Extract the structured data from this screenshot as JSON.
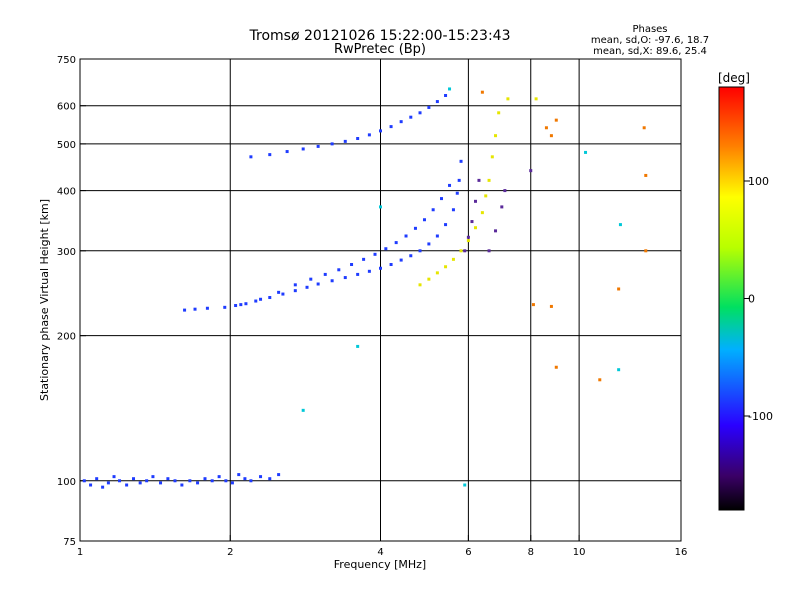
{
  "chart_data": {
    "type": "scatter",
    "title": "Tromsø 20121026 15:22:00-15:23:43",
    "subtitle": "RwPretec (Bp)",
    "stats": {
      "heading": "Phases",
      "line1": "mean, sd,O: -97.6, 18.7",
      "line2": "mean, sd,X:  89.6, 25.4"
    },
    "xlabel": "Frequency [MHz]",
    "ylabel": "Stationary phase Virtual Height [km]",
    "x_scale": "log",
    "y_scale": "log",
    "xlim": [
      1,
      16
    ],
    "ylim": [
      75,
      750
    ],
    "x_ticks": [
      1,
      2,
      4,
      6,
      8,
      10,
      16
    ],
    "y_ticks": [
      75,
      100,
      200,
      300,
      400,
      500,
      600,
      750
    ],
    "x_grid": [
      2,
      4,
      6,
      8,
      10
    ],
    "y_grid": [
      100,
      200,
      300,
      400,
      500,
      600
    ],
    "grid": true,
    "colorbar": {
      "label": "[deg]",
      "range": [
        -180,
        180
      ],
      "ticks": [
        100,
        0,
        -100
      ]
    },
    "series": [
      {
        "color": "#1f3cff",
        "points": [
          [
            1.02,
            100
          ],
          [
            1.05,
            98
          ],
          [
            1.08,
            101
          ],
          [
            1.11,
            97
          ],
          [
            1.14,
            99
          ],
          [
            1.17,
            102
          ],
          [
            1.2,
            100
          ],
          [
            1.24,
            98
          ],
          [
            1.28,
            101
          ],
          [
            1.32,
            99
          ],
          [
            1.36,
            100
          ],
          [
            1.4,
            102
          ],
          [
            1.45,
            99
          ],
          [
            1.5,
            101
          ],
          [
            1.55,
            100
          ],
          [
            1.6,
            98
          ],
          [
            1.66,
            100
          ],
          [
            1.72,
            99
          ],
          [
            1.78,
            101
          ],
          [
            1.84,
            100
          ],
          [
            1.9,
            102
          ],
          [
            1.96,
            100
          ],
          [
            2.02,
            99
          ],
          [
            2.08,
            103
          ],
          [
            2.14,
            101
          ],
          [
            2.2,
            100
          ],
          [
            2.3,
            102
          ],
          [
            2.4,
            101
          ],
          [
            2.5,
            103
          ],
          [
            1.62,
            226
          ],
          [
            1.7,
            227
          ],
          [
            1.8,
            228
          ],
          [
            1.95,
            229
          ],
          [
            2.05,
            231
          ],
          [
            2.15,
            233
          ],
          [
            2.25,
            236
          ],
          [
            2.4,
            240
          ],
          [
            2.55,
            244
          ],
          [
            2.7,
            248
          ],
          [
            2.85,
            252
          ],
          [
            3.0,
            256
          ],
          [
            3.2,
            260
          ],
          [
            3.4,
            264
          ],
          [
            3.6,
            268
          ],
          [
            3.8,
            272
          ],
          [
            4.0,
            276
          ],
          [
            4.2,
            281
          ],
          [
            4.4,
            287
          ],
          [
            4.6,
            293
          ],
          [
            4.8,
            300
          ],
          [
            5.0,
            310
          ],
          [
            5.2,
            322
          ],
          [
            5.4,
            340
          ],
          [
            5.6,
            365
          ],
          [
            5.7,
            395
          ],
          [
            5.75,
            420
          ],
          [
            5.8,
            460
          ],
          [
            2.1,
            232
          ],
          [
            2.3,
            238
          ],
          [
            2.5,
            246
          ],
          [
            2.7,
            255
          ],
          [
            2.9,
            262
          ],
          [
            3.1,
            268
          ],
          [
            3.3,
            274
          ],
          [
            3.5,
            281
          ],
          [
            3.7,
            288
          ],
          [
            3.9,
            295
          ],
          [
            4.1,
            303
          ],
          [
            4.3,
            312
          ],
          [
            4.5,
            322
          ],
          [
            4.7,
            334
          ],
          [
            4.9,
            348
          ],
          [
            5.1,
            365
          ],
          [
            5.3,
            385
          ],
          [
            5.5,
            410
          ],
          [
            2.2,
            470
          ],
          [
            2.4,
            475
          ],
          [
            2.6,
            482
          ],
          [
            2.8,
            488
          ],
          [
            3.0,
            494
          ],
          [
            3.2,
            500
          ],
          [
            3.4,
            506
          ],
          [
            3.6,
            513
          ],
          [
            3.8,
            522
          ],
          [
            4.0,
            532
          ],
          [
            4.2,
            543
          ],
          [
            4.4,
            556
          ],
          [
            4.6,
            568
          ],
          [
            4.8,
            580
          ],
          [
            5.0,
            595
          ],
          [
            5.2,
            612
          ],
          [
            5.4,
            630
          ]
        ]
      },
      {
        "color": "#5a2a9a",
        "points": [
          [
            5.9,
            300
          ],
          [
            6.0,
            320
          ],
          [
            6.1,
            345
          ],
          [
            6.2,
            380
          ],
          [
            6.3,
            420
          ],
          [
            6.6,
            300
          ],
          [
            6.8,
            330
          ],
          [
            7.0,
            370
          ],
          [
            7.1,
            400
          ],
          [
            8.0,
            440
          ]
        ]
      },
      {
        "color": "#e6e600",
        "points": [
          [
            4.8,
            255
          ],
          [
            5.0,
            262
          ],
          [
            5.2,
            270
          ],
          [
            5.4,
            278
          ],
          [
            5.6,
            288
          ],
          [
            5.8,
            300
          ],
          [
            6.0,
            315
          ],
          [
            6.2,
            335
          ],
          [
            6.4,
            360
          ],
          [
            6.5,
            390
          ],
          [
            6.6,
            420
          ],
          [
            6.7,
            470
          ],
          [
            6.8,
            520
          ],
          [
            6.9,
            580
          ],
          [
            7.2,
            620
          ],
          [
            8.2,
            620
          ]
        ]
      },
      {
        "color": "#f07800",
        "points": [
          [
            6.4,
            640
          ],
          [
            8.6,
            540
          ],
          [
            8.8,
            520
          ],
          [
            9.0,
            560
          ],
          [
            8.1,
            232
          ],
          [
            8.8,
            230
          ],
          [
            9.0,
            172
          ],
          [
            11.0,
            162
          ],
          [
            12.0,
            250
          ],
          [
            13.5,
            540
          ],
          [
            13.6,
            430
          ],
          [
            13.6,
            300
          ]
        ]
      },
      {
        "color": "#00c8d8",
        "points": [
          [
            5.5,
            650
          ],
          [
            3.6,
            190
          ],
          [
            2.8,
            140
          ],
          [
            4.0,
            370
          ],
          [
            10.3,
            480
          ],
          [
            12.1,
            340
          ],
          [
            12.0,
            170
          ],
          [
            5.9,
            98
          ]
        ]
      }
    ]
  }
}
